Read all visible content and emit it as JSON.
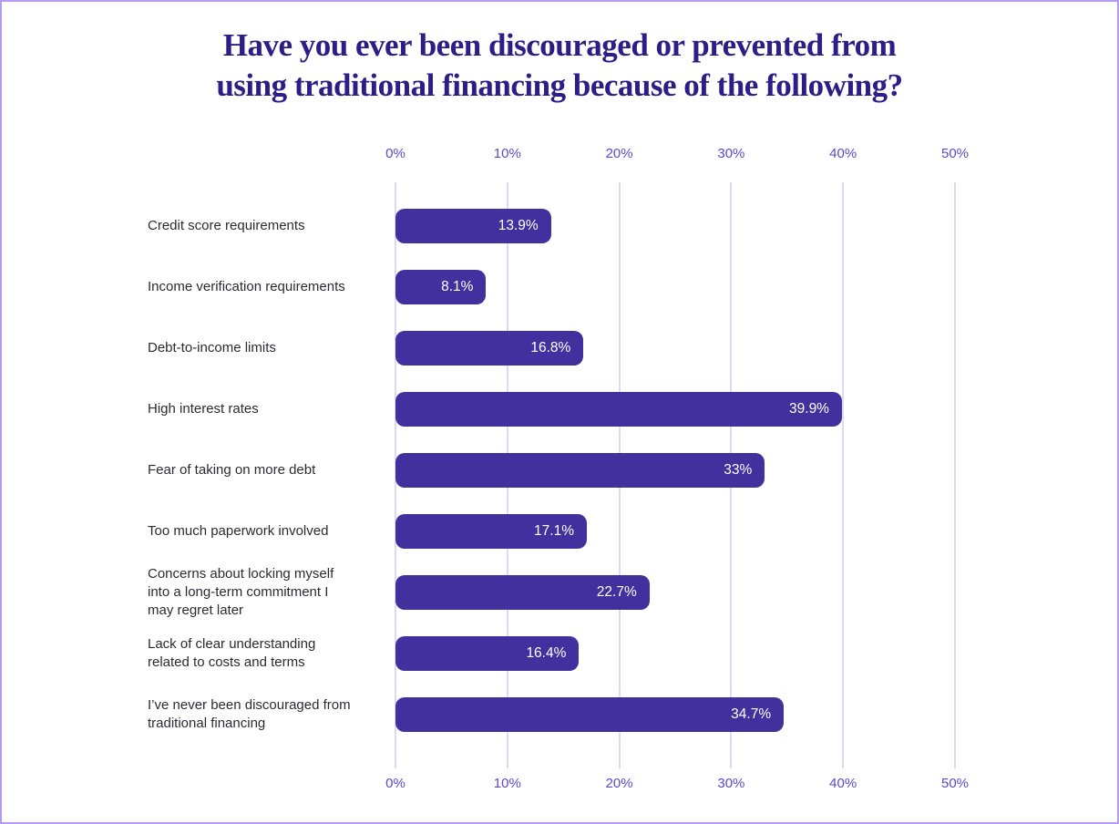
{
  "title": {
    "line1": "Have you ever been discouraged or prevented from",
    "line2": "using traditional financing because of the following?"
  },
  "chart_data": {
    "type": "bar",
    "orientation": "horizontal",
    "title": "Have you ever been discouraged or prevented from using traditional financing because of the following?",
    "categories": [
      "Credit score requirements",
      "Income verification requirements",
      "Debt-to-income limits",
      "High interest rates",
      "Fear of taking on more debt",
      "Too much paperwork involved",
      "Concerns about locking myself into a long-term commitment I may regret later",
      "Lack of clear understanding related to costs and terms",
      "I’ve never been discouraged from traditional financing"
    ],
    "category_lines": [
      [
        "Credit score requirements"
      ],
      [
        "Income verification requirements"
      ],
      [
        "Debt-to-income limits"
      ],
      [
        "High interest rates"
      ],
      [
        "Fear of taking on more debt"
      ],
      [
        "Too much paperwork involved"
      ],
      [
        "Concerns about locking myself",
        "into a long-term commitment I",
        "may regret later"
      ],
      [
        "Lack of clear understanding",
        "related to costs and terms"
      ],
      [
        "I’ve never been discouraged from",
        "traditional financing"
      ]
    ],
    "values": [
      13.9,
      8.1,
      16.8,
      39.9,
      33,
      17.1,
      22.7,
      16.4,
      34.7
    ],
    "value_labels": [
      "13.9%",
      "8.1%",
      "16.8%",
      "39.9%",
      "33%",
      "17.1%",
      "22.7%",
      "16.4%",
      "34.7%"
    ],
    "x_ticks": [
      "0%",
      "10%",
      "20%",
      "30%",
      "40%",
      "50%"
    ],
    "xlim": [
      0,
      50
    ],
    "grid": true,
    "axis_label_positions": [
      "top",
      "bottom"
    ],
    "xlabel": "",
    "ylabel": "",
    "colors": {
      "bar": "#41309e",
      "title": "#2e1d86",
      "tick_label": "#5c48cc",
      "gridline": "#ded9f6",
      "category_label": "#2b2a33",
      "value_label": "#ffffff",
      "page_border": "#b49af3",
      "background": "#ffffff"
    }
  }
}
